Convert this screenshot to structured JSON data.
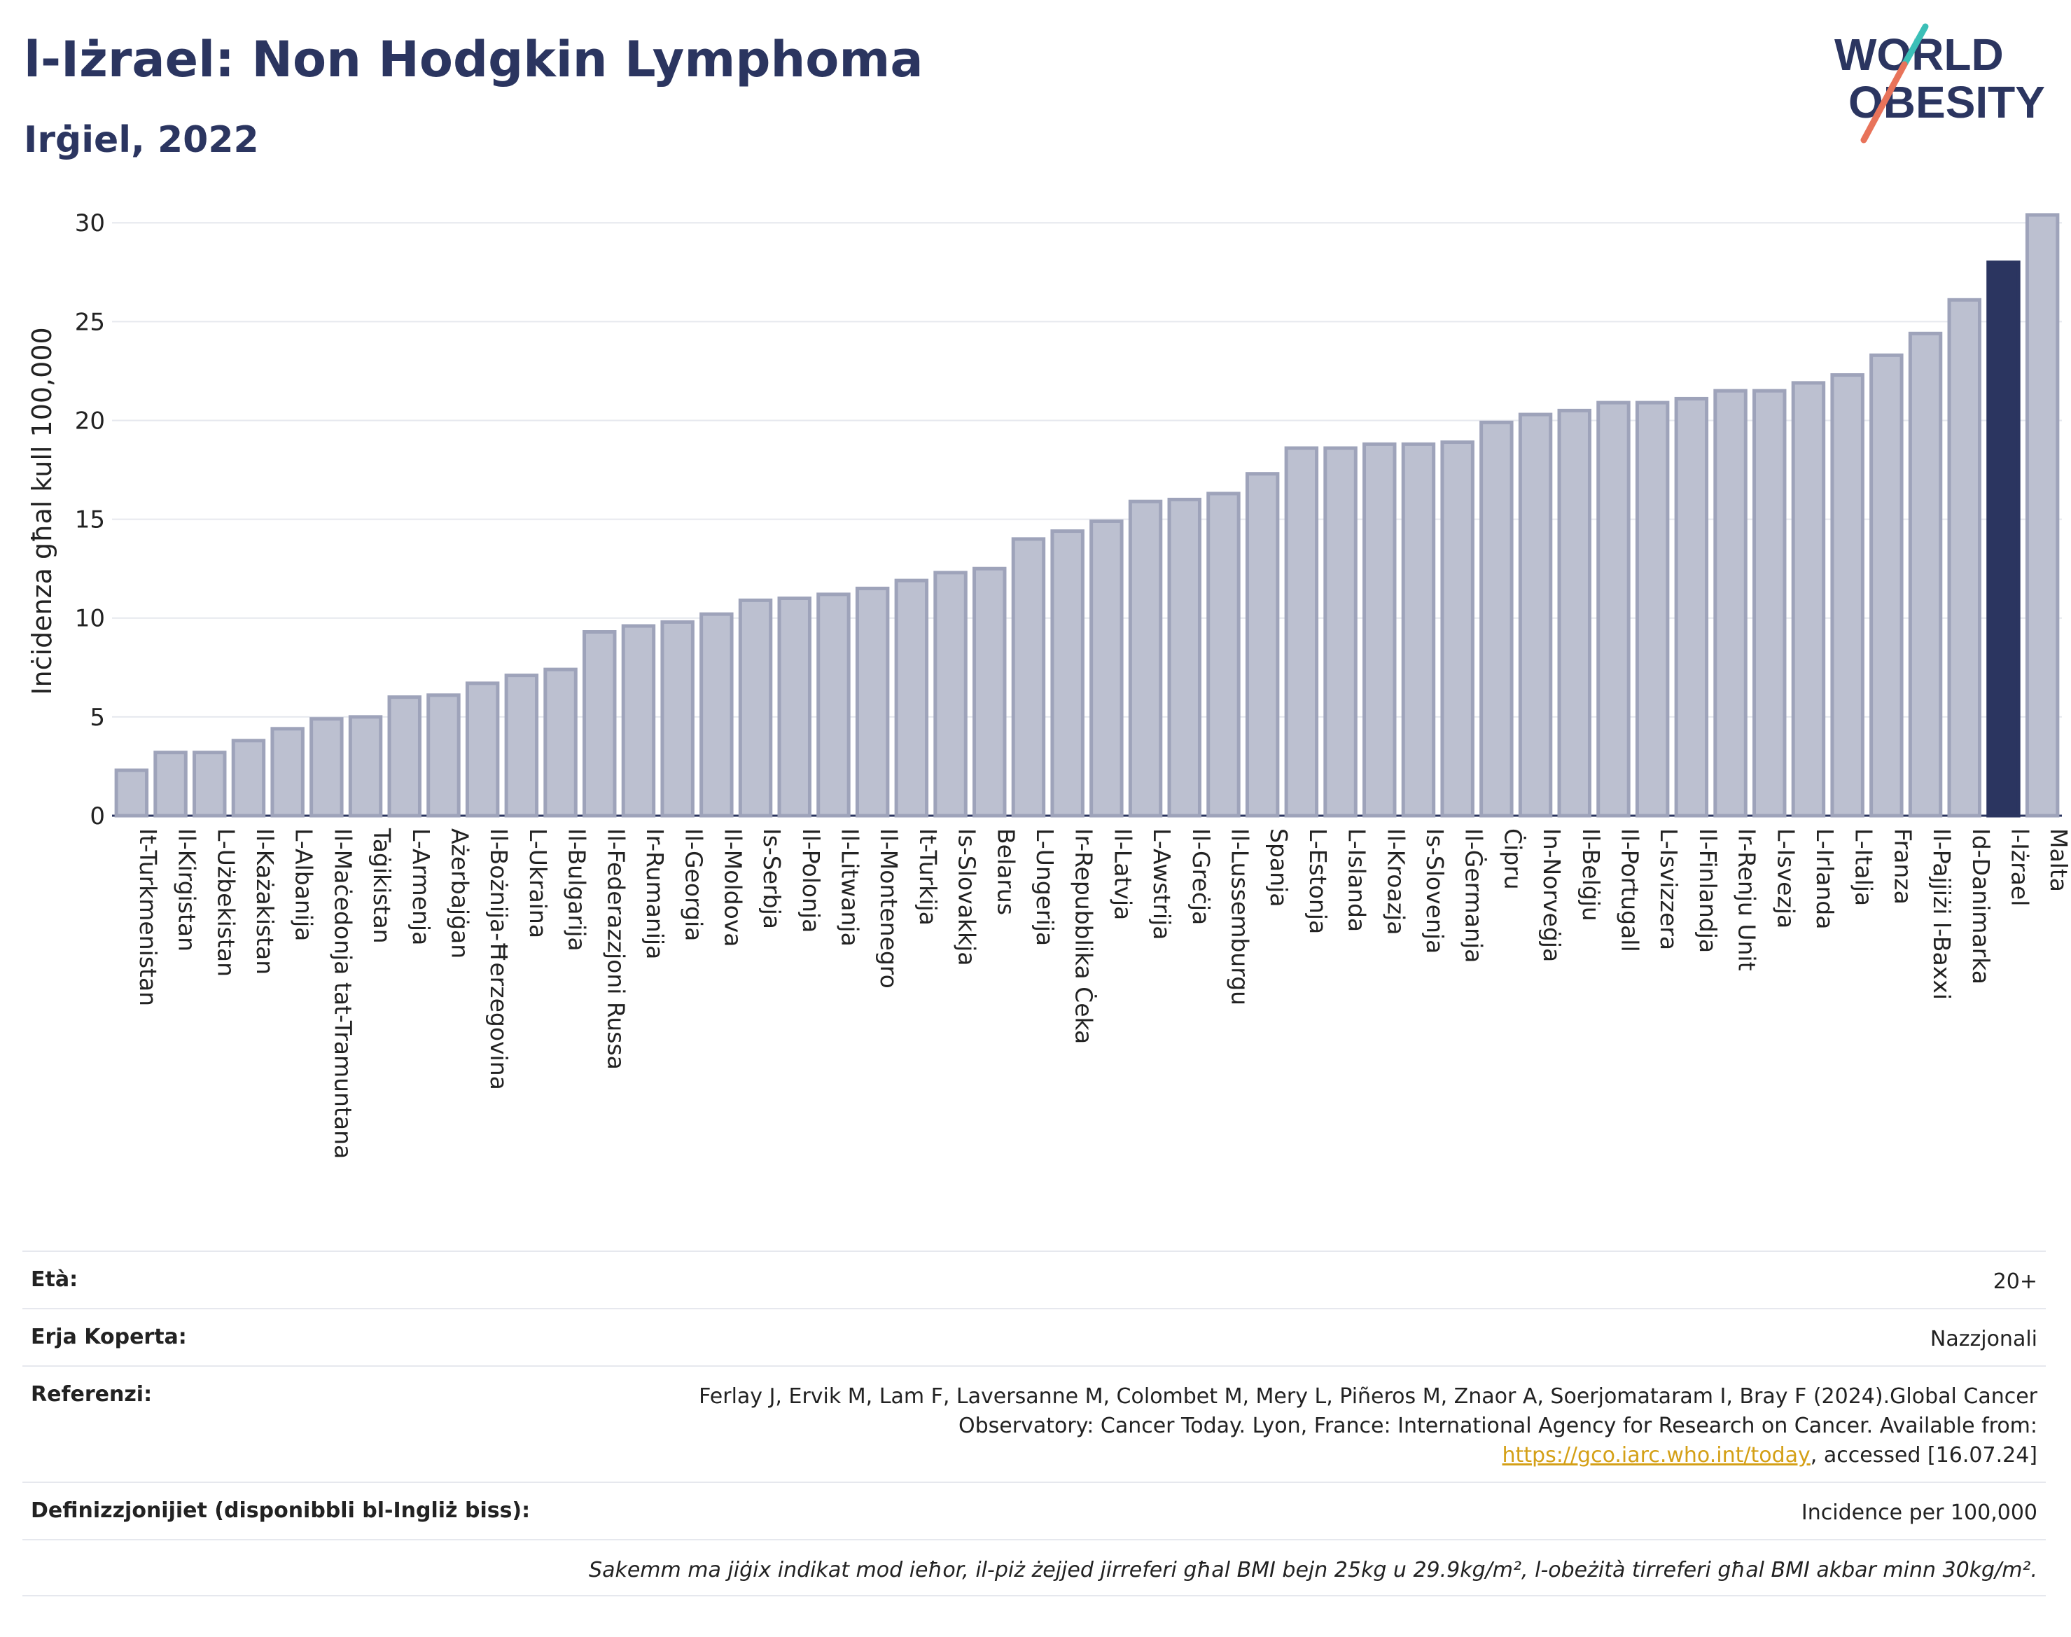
{
  "header": {
    "title": "l-Iżrael: Non Hodgkin Lymphoma",
    "subtitle": "Irġiel, 2022",
    "logo_line1": "WORLD",
    "logo_line2": "OBESITY"
  },
  "colors": {
    "title": "#2b3560",
    "bar": "#bcc0d0",
    "bar_border": "#9ea3ba",
    "highlight": "#2b3560",
    "logo_teal": "#3bbfb7",
    "logo_coral": "#e8735a"
  },
  "chart_data": {
    "type": "bar",
    "title": "l-Iżrael: Non Hodgkin Lymphoma",
    "subtitle": "Irġiel, 2022",
    "ylabel": "Inċidenza għal kull 100,000",
    "xlabel": "",
    "ylim": [
      0,
      31
    ],
    "yticks": [
      0,
      5,
      10,
      15,
      20,
      25,
      30
    ],
    "grid": true,
    "highlight": "l-Iżrael",
    "categories": [
      "It-Turkmenistan",
      "Il-Kirgistan",
      "L-Użbekistan",
      "Il-Każakistan",
      "L-Albanija",
      "Il-Maċedonja tat-Tramuntana",
      "Taġikistan",
      "L-Armenja",
      "Ażerbajġan",
      "Il-Bożnija-Ħerzegovina",
      "L-Ukraina",
      "Il-Bulgarija",
      "Il-Federazzjoni Russa",
      "Ir-Rumanija",
      "Il-Georgia",
      "Il-Moldova",
      "Is-Serbja",
      "Il-Polonja",
      "Il-Litwanja",
      "Il-Montenegro",
      "It-Turkija",
      "Is-Slovakkja",
      "Belarus",
      "L-Ungerija",
      "Ir-Repubblika Ċeka",
      "Il-Latvja",
      "L-Awstrija",
      "Il-Greċja",
      "Il-Lussemburgu",
      "Spanja",
      "L-Estonja",
      "L-Islanda",
      "Il-Kroazja",
      "Is-Slovenja",
      "Il-Ġermanja",
      "Ċipru",
      "In-Norveġja",
      "Il-Belġju",
      "Il-Portugall",
      "L-Isvizzera",
      "Il-Finlandja",
      "Ir-Renju Unit",
      "L-Isvezja",
      "L-Irlanda",
      "L-Italja",
      "Franza",
      "Il-Pajjiżi l-Baxxi",
      "Id-Danimarka",
      "l-Iżrael",
      "Malta"
    ],
    "values": [
      2.3,
      3.2,
      3.2,
      3.8,
      4.4,
      4.9,
      5.0,
      6.0,
      6.1,
      6.7,
      7.1,
      7.4,
      9.3,
      9.6,
      9.8,
      10.2,
      10.9,
      11.0,
      11.2,
      11.5,
      11.9,
      12.3,
      12.5,
      14.0,
      14.4,
      14.9,
      15.9,
      16.0,
      16.3,
      17.3,
      18.6,
      18.6,
      18.8,
      18.8,
      18.9,
      19.9,
      20.3,
      20.5,
      20.9,
      20.9,
      21.1,
      21.5,
      21.5,
      21.9,
      22.3,
      23.3,
      24.4,
      26.1,
      28.0,
      30.4
    ]
  },
  "info": {
    "age_label": "Età:",
    "age_value": "20+",
    "area_label": "Erja Koperta:",
    "area_value": "Nazzjonali",
    "ref_label": "Referenzi:",
    "ref_text_1": "Ferlay J, Ervik M, Lam F, Laversanne M, Colombet M, Mery L, Piñeros M, Znaor A, Soerjomataram I, Bray F (2024).Global Cancer Observatory: Cancer Today. Lyon, France: International Agency for Research on Cancer. Available from: ",
    "ref_link": "https://gco.iarc.who.int/today",
    "ref_text_2": ", accessed [16.07.24]",
    "def_label": "Definizzjonijiet (disponibbli bl-Ingliż biss):",
    "def_value": "Incidence per 100,000",
    "note": "Sakemm ma jiġix indikat mod ieħor, il-piż żejjed jirreferi għal BMI bejn 25kg u 29.9kg/m², l-obeżità tirreferi għal BMI akbar minn 30kg/m²."
  }
}
